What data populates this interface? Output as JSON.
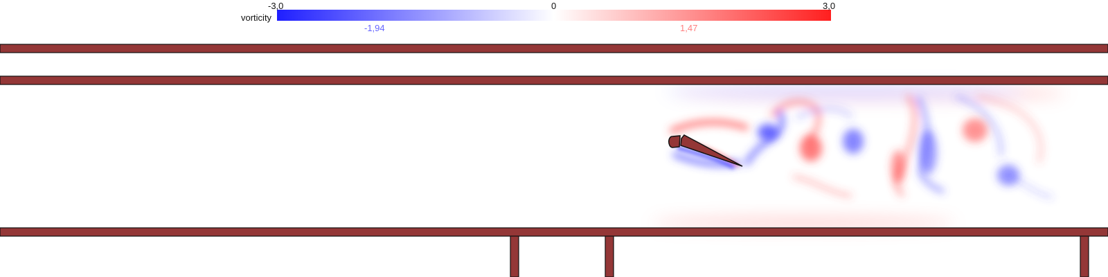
{
  "legend": {
    "label": "vorticity",
    "min_label": "-3,0",
    "center_label": "0",
    "max_label": "3,0",
    "marker_negative": "-1,94",
    "marker_positive": "1,47",
    "min_value": -3.0,
    "max_value": 3.0,
    "marker_negative_value": -1.94,
    "marker_positive_value": 1.47
  },
  "colors": {
    "wall": "#943737",
    "outline": "#111111",
    "positive": "#ff1f1f",
    "negative": "#1f1fff",
    "marker_negative_text": "#6666ff",
    "marker_positive_text": "#ff7f7f"
  }
}
